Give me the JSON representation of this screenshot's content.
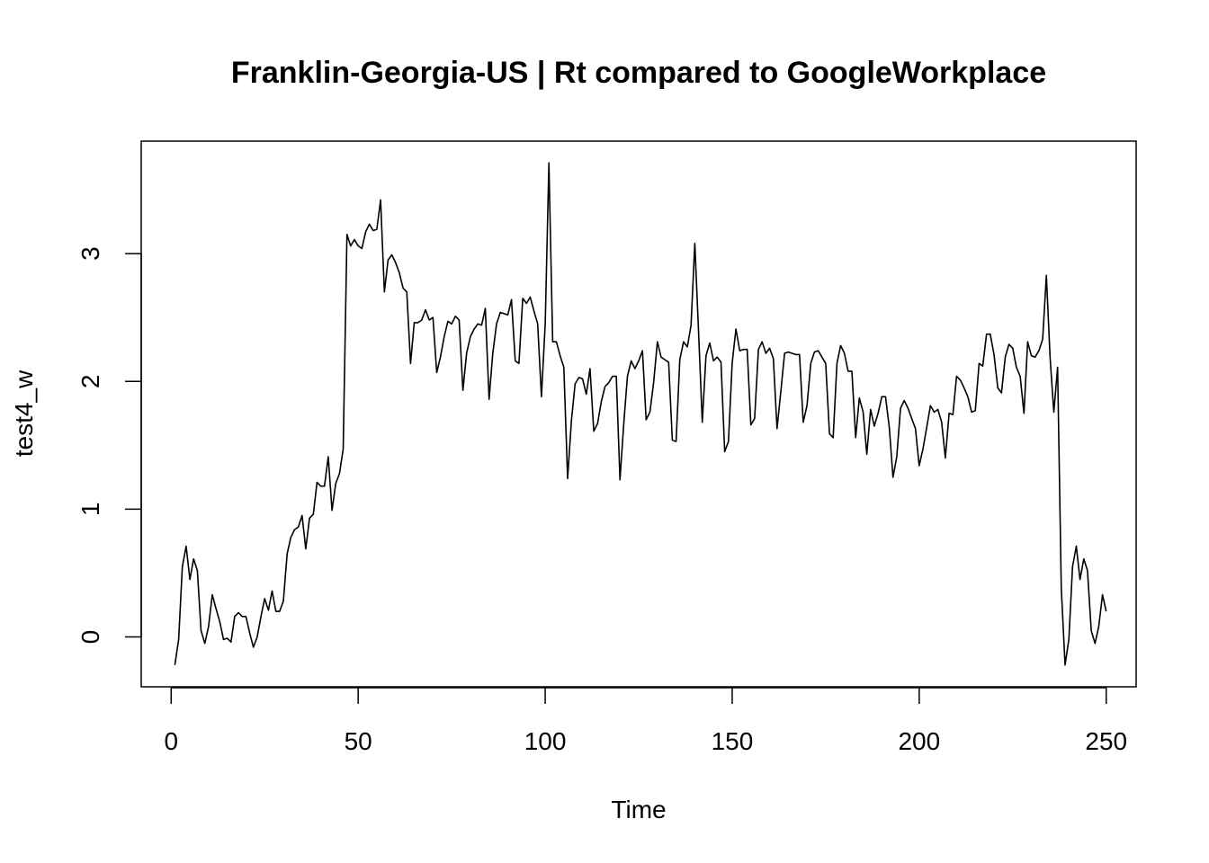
{
  "chart_data": {
    "type": "line",
    "title": "Franklin-Georgia-US | Rt compared to GoogleWorkplace",
    "xlabel": "Time",
    "ylabel": "test4_w",
    "xlim": [
      -8,
      258
    ],
    "ylim": [
      -0.39,
      3.88
    ],
    "x_ticks": [
      0,
      50,
      100,
      150,
      200,
      250
    ],
    "y_ticks": [
      0,
      1,
      2,
      3
    ],
    "grid": false,
    "legend": "none",
    "line_color": "#000000",
    "x_start": 1,
    "values": [
      -0.22,
      -0.02,
      0.55,
      0.71,
      0.45,
      0.61,
      0.52,
      0.05,
      -0.05,
      0.08,
      0.33,
      0.22,
      0.12,
      -0.02,
      -0.01,
      -0.04,
      0.16,
      0.19,
      0.16,
      0.16,
      0.03,
      -0.08,
      0.0,
      0.16,
      0.3,
      0.21,
      0.36,
      0.2,
      0.2,
      0.28,
      0.65,
      0.78,
      0.84,
      0.86,
      0.95,
      0.69,
      0.93,
      0.96,
      1.21,
      1.18,
      1.18,
      1.41,
      0.99,
      1.2,
      1.28,
      1.47,
      3.15,
      3.06,
      3.11,
      3.06,
      3.04,
      3.17,
      3.23,
      3.18,
      3.19,
      3.42,
      2.7,
      2.95,
      2.99,
      2.93,
      2.85,
      2.73,
      2.7,
      2.14,
      2.46,
      2.46,
      2.48,
      2.56,
      2.48,
      2.5,
      2.07,
      2.19,
      2.35,
      2.47,
      2.45,
      2.51,
      2.48,
      1.93,
      2.22,
      2.35,
      2.41,
      2.45,
      2.44,
      2.57,
      1.86,
      2.22,
      2.45,
      2.54,
      2.53,
      2.52,
      2.64,
      2.16,
      2.14,
      2.65,
      2.61,
      2.66,
      2.55,
      2.45,
      1.88,
      2.45,
      3.71,
      2.31,
      2.31,
      2.2,
      2.11,
      1.24,
      1.69,
      1.98,
      2.03,
      2.02,
      1.9,
      2.1,
      1.61,
      1.67,
      1.84,
      1.96,
      1.99,
      2.04,
      2.04,
      1.23,
      1.67,
      2.04,
      2.16,
      2.1,
      2.16,
      2.24,
      1.7,
      1.76,
      1.99,
      2.31,
      2.19,
      2.17,
      2.15,
      1.54,
      1.53,
      2.17,
      2.31,
      2.27,
      2.44,
      3.08,
      2.4,
      1.68,
      2.2,
      2.3,
      2.16,
      2.19,
      2.15,
      1.45,
      1.53,
      2.14,
      2.41,
      2.24,
      2.25,
      2.25,
      1.66,
      1.71,
      2.25,
      2.31,
      2.22,
      2.26,
      2.18,
      1.63,
      1.92,
      2.22,
      2.23,
      2.22,
      2.21,
      2.21,
      1.68,
      1.81,
      2.14,
      2.23,
      2.24,
      2.19,
      2.14,
      1.59,
      1.56,
      2.14,
      2.28,
      2.22,
      2.08,
      2.08,
      1.56,
      1.87,
      1.76,
      1.43,
      1.78,
      1.65,
      1.75,
      1.88,
      1.88,
      1.64,
      1.25,
      1.41,
      1.79,
      1.85,
      1.79,
      1.71,
      1.63,
      1.34,
      1.47,
      1.64,
      1.81,
      1.76,
      1.78,
      1.68,
      1.4,
      1.75,
      1.74,
      2.04,
      2.01,
      1.95,
      1.88,
      1.76,
      1.77,
      2.14,
      2.12,
      2.37,
      2.37,
      2.21,
      1.95,
      1.91,
      2.19,
      2.29,
      2.26,
      2.11,
      2.04,
      1.75,
      2.31,
      2.2,
      2.19,
      2.24,
      2.33,
      2.83,
      2.18,
      1.76,
      2.11,
      0.38,
      -0.22,
      -0.02,
      0.55,
      0.71,
      0.45,
      0.61,
      0.52,
      0.05,
      -0.05,
      0.08,
      0.33,
      0.2
    ]
  }
}
